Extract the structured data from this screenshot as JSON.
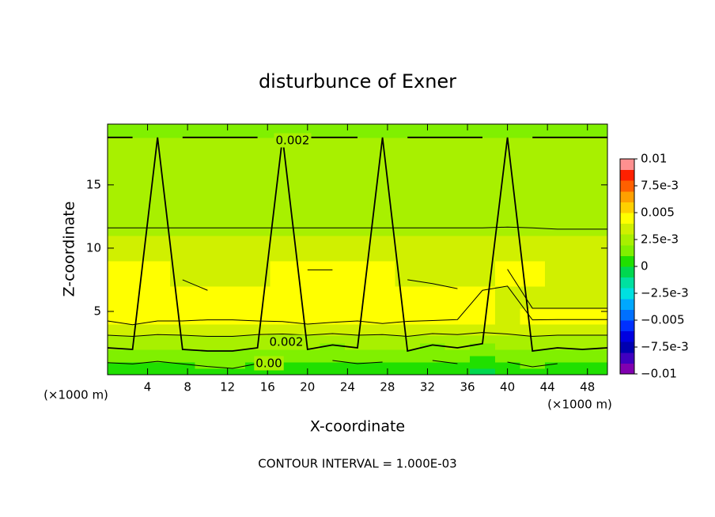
{
  "chart_data": {
    "type": "contour",
    "title": "disturbunce of Exner",
    "x_label": "X-coordinate",
    "y_label": "Z-coordinate",
    "x_unit_label": "(×1000 m)",
    "x_unit_label_right": "(×1000 m)",
    "footer": "CONTOUR INTERVAL = 1.000E-03",
    "contour_labels": [
      "0.002",
      "0.002",
      "0.00"
    ],
    "xlim": [
      0,
      50
    ],
    "xticks": [
      4,
      8,
      12,
      16,
      20,
      24,
      28,
      32,
      36,
      40,
      44,
      48
    ],
    "ylim": [
      0,
      19.8
    ],
    "yticks": [
      5,
      10,
      15
    ],
    "x": [
      0,
      2.5,
      5,
      7.5,
      10,
      12.5,
      15,
      17.5,
      20,
      22.5,
      25,
      27.5,
      30,
      32.5,
      35,
      37.5,
      40,
      42.5,
      45,
      47.5,
      50
    ],
    "y": [
      0.25,
      0.75,
      1.25,
      1.75,
      2.25,
      2.75,
      3.5,
      4.5,
      6,
      8,
      10,
      12,
      14,
      16,
      18,
      19.5
    ],
    "z": [
      [
        0.0004,
        0.0005,
        0.0003,
        0.0004,
        0.0006,
        0.0008,
        0.0005,
        0.0004,
        0.0006,
        0.0003,
        0.0005,
        0.0004,
        0.0006,
        0.0003,
        0.0004,
        -0.0002,
        0.0005,
        0.0007,
        0.0004,
        0.0005,
        0.0004
      ],
      [
        0.0008,
        0.0009,
        0.0007,
        0.0009,
        0.0011,
        0.0012,
        0.0009,
        0.0008,
        0.001,
        0.0007,
        0.0009,
        0.0008,
        0.001,
        0.0007,
        0.0009,
        0.0005,
        0.0008,
        0.0011,
        0.0009,
        0.001,
        0.0008
      ],
      [
        0.0013,
        0.0014,
        0.0012,
        0.0014,
        0.0016,
        0.0015,
        0.0013,
        0.0012,
        0.0014,
        0.0011,
        0.0013,
        0.0012,
        0.0015,
        0.0011,
        0.0013,
        0.001,
        0.0012,
        0.0015,
        0.0013,
        0.0014,
        0.0013
      ],
      [
        0.0017,
        0.0018,
        0.0016,
        0.0018,
        0.0019,
        0.0019,
        0.0017,
        0.0016,
        0.0018,
        0.0015,
        0.0017,
        0.0016,
        0.0019,
        0.0015,
        0.0017,
        0.0014,
        0.0016,
        0.0019,
        0.0017,
        0.0018,
        0.0017
      ],
      [
        0.0021,
        0.0022,
        0.002,
        0.0022,
        0.0023,
        0.0023,
        0.0021,
        0.002,
        0.0022,
        0.0019,
        0.0021,
        0.002,
        0.0023,
        0.0019,
        0.0021,
        0.0018,
        0.002,
        0.0023,
        0.0021,
        0.0022,
        0.0021
      ],
      [
        0.0026,
        0.0027,
        0.0025,
        0.0026,
        0.0027,
        0.0027,
        0.0025,
        0.0025,
        0.0026,
        0.0024,
        0.0026,
        0.0025,
        0.0027,
        0.0024,
        0.0025,
        0.0023,
        0.0025,
        0.0027,
        0.0026,
        0.0026,
        0.0026
      ],
      [
        0.0034,
        0.0035,
        0.0034,
        0.0034,
        0.0035,
        0.0035,
        0.0034,
        0.0033,
        0.0034,
        0.0033,
        0.0034,
        0.0034,
        0.0035,
        0.0033,
        0.0034,
        0.0032,
        0.0033,
        0.0035,
        0.0034,
        0.0034,
        0.0034
      ],
      [
        0.0042,
        0.0046,
        0.0042,
        0.0042,
        0.0041,
        0.0041,
        0.0042,
        0.0043,
        0.0046,
        0.0044,
        0.0042,
        0.0045,
        0.0042,
        0.0042,
        0.0041,
        0.004,
        0.0039,
        0.0041,
        0.0041,
        0.0041,
        0.0041
      ],
      [
        0.0043,
        0.0043,
        0.0043,
        0.0043,
        0.0041,
        0.004,
        0.0042,
        0.0043,
        0.0044,
        0.0044,
        0.0043,
        0.0043,
        0.0043,
        0.0043,
        0.0042,
        0.0041,
        0.0039,
        0.0039,
        0.0039,
        0.0039,
        0.0039
      ],
      [
        0.004,
        0.0041,
        0.004,
        0.0039,
        0.0038,
        0.0038,
        0.0039,
        0.004,
        0.0041,
        0.0041,
        0.004,
        0.004,
        0.0039,
        0.0038,
        0.0037,
        0.0038,
        0.0041,
        0.004,
        0.0037,
        0.0036,
        0.0036
      ],
      [
        0.0034,
        0.0034,
        0.0034,
        0.0034,
        0.0034,
        0.0034,
        0.0034,
        0.0034,
        0.0034,
        0.0034,
        0.0034,
        0.0034,
        0.0034,
        0.0034,
        0.0034,
        0.0034,
        0.0035,
        0.0034,
        0.0033,
        0.0033,
        0.0033
      ],
      [
        0.0029,
        0.0029,
        0.0029,
        0.0029,
        0.0029,
        0.0029,
        0.0029,
        0.0029,
        0.0029,
        0.0029,
        0.0029,
        0.0029,
        0.0029,
        0.0029,
        0.0029,
        0.0029,
        0.0029,
        0.0029,
        0.0029,
        0.0029,
        0.0029
      ],
      [
        0.0026,
        0.0026,
        0.0026,
        0.0026,
        0.0026,
        0.0026,
        0.0026,
        0.0026,
        0.0026,
        0.0026,
        0.0026,
        0.0026,
        0.0026,
        0.0026,
        0.0026,
        0.0026,
        0.0026,
        0.0026,
        0.0026,
        0.0026,
        0.0026
      ],
      [
        0.0023,
        0.0023,
        0.0023,
        0.0023,
        0.0023,
        0.0023,
        0.0023,
        0.0023,
        0.0023,
        0.0023,
        0.0023,
        0.0023,
        0.0023,
        0.0023,
        0.0023,
        0.0023,
        0.0023,
        0.0023,
        0.0023,
        0.0023,
        0.0023
      ],
      [
        0.0021,
        0.0021,
        0.0021,
        0.0021,
        0.0021,
        0.0021,
        0.0021,
        0.0021,
        0.0021,
        0.0021,
        0.0021,
        0.0021,
        0.0021,
        0.0021,
        0.0021,
        0.0021,
        0.0021,
        0.0021,
        0.0021,
        0.0021,
        0.0021
      ],
      [
        0.0019,
        0.0019,
        0.0019,
        0.0019,
        0.0019,
        0.0019,
        0.0019,
        0.0019,
        0.0019,
        0.0019,
        0.0019,
        0.0019,
        0.0019,
        0.0019,
        0.0019,
        0.0019,
        0.0019,
        0.0019,
        0.0019,
        0.0019,
        0.0019
      ]
    ],
    "contour_lines": [
      0.001,
      0.002,
      0.003,
      0.004
    ],
    "zlim": [
      -0.01,
      0.01
    ],
    "colors": [
      "#8000b0",
      "#4000c0",
      "#0000b0",
      "#0000e0",
      "#0030ff",
      "#0070ff",
      "#00a8ff",
      "#00e0e0",
      "#00e0a0",
      "#00d850",
      "#20e000",
      "#80f000",
      "#a8f000",
      "#d0f000",
      "#ffff00",
      "#ffd000",
      "#ffa000",
      "#ff6000",
      "#ff2000",
      "#ff9090"
    ],
    "colorbar_ticks": [
      0.01,
      {
        "value": 0.0075,
        "label": "7.5e-3"
      },
      0.005,
      {
        "value": 0.0025,
        "label": "2.5e-3"
      },
      0,
      {
        "value": -0.0025,
        "label": "−2.5e-3"
      },
      {
        "value": -0.005,
        "label": "−0.005"
      },
      {
        "value": -0.0075,
        "label": "−7.5e-3"
      },
      {
        "value": -0.01,
        "label": "−0.01"
      }
    ]
  }
}
